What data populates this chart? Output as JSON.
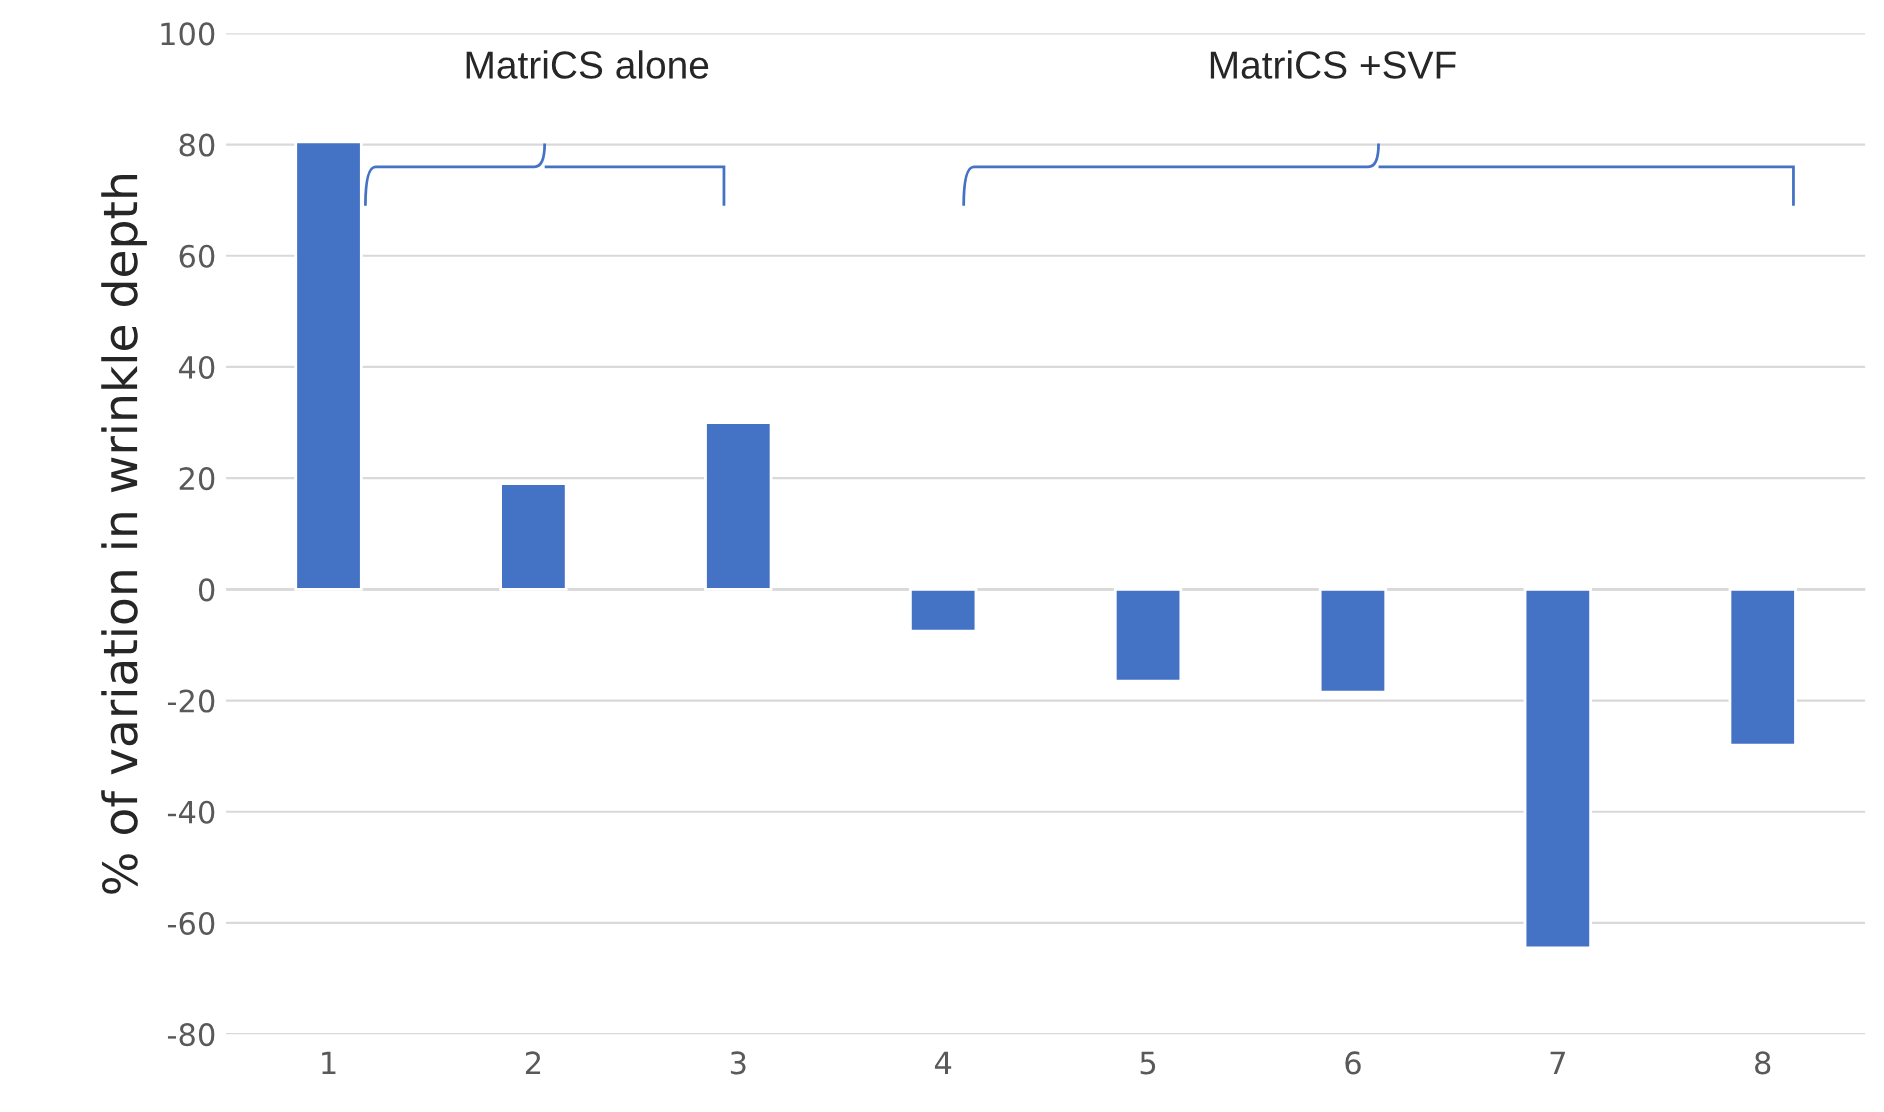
{
  "chart_data": {
    "type": "bar",
    "ylabel": "% of variation in wrinkle depth",
    "categories": [
      "1",
      "2",
      "3",
      "4",
      "5",
      "6",
      "7",
      "8"
    ],
    "values": [
      80.5,
      19,
      30,
      -7.5,
      -16.5,
      -18.5,
      -64.5,
      -28
    ],
    "color": "#4472c4",
    "ylim": [
      -80,
      100
    ],
    "yticks": [
      -80,
      -60,
      -40,
      -20,
      0,
      20,
      40,
      60,
      80,
      100
    ],
    "grid": "y",
    "annotations": [
      "MatriCS alone",
      "MatriCS +SVF"
    ]
  }
}
